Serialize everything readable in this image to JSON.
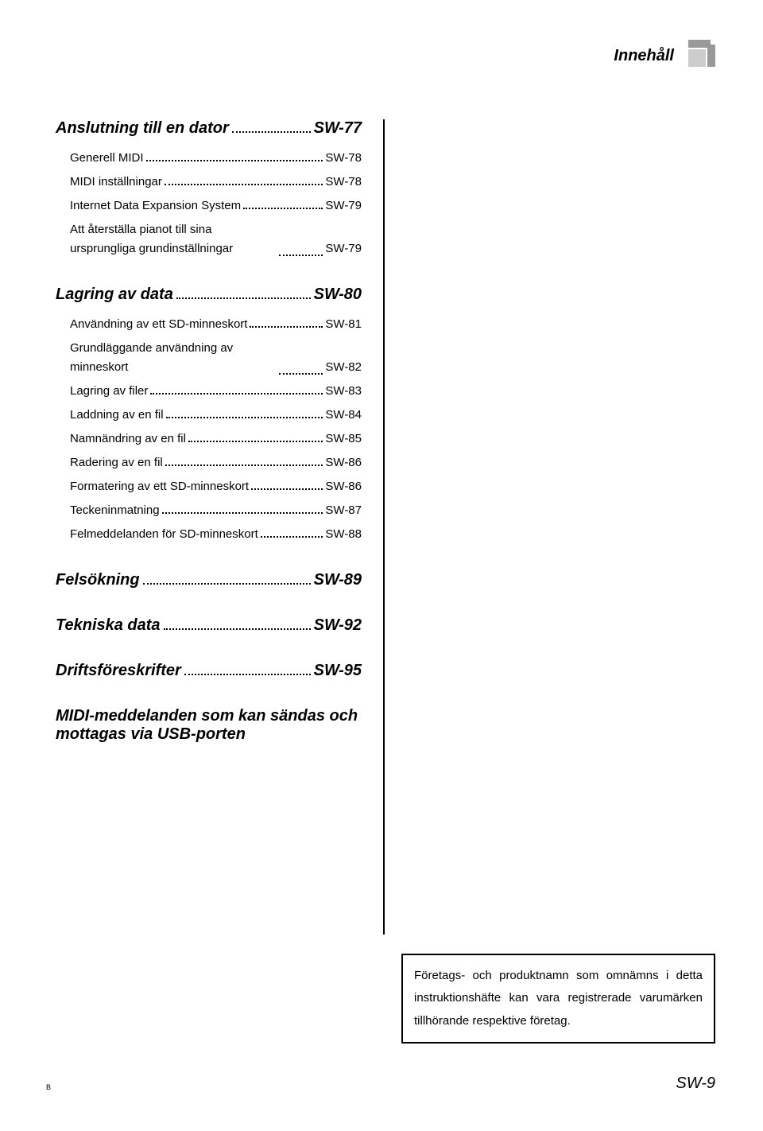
{
  "header": {
    "title": "Innehåll"
  },
  "sections": [
    {
      "heading": {
        "label": "Anslutning till en dator",
        "page": "SW-77"
      },
      "items": [
        {
          "label": "Generell MIDI",
          "page": "SW-78"
        },
        {
          "label": "MIDI inställningar",
          "page": "SW-78"
        },
        {
          "label": "Internet Data Expansion System",
          "page": "SW-79"
        },
        {
          "label": "Att återställa pianot till sina ursprungliga grundinställningar",
          "page": "SW-79",
          "wrap": true
        }
      ]
    },
    {
      "heading": {
        "label": "Lagring av data",
        "page": "SW-80"
      },
      "items": [
        {
          "label": "Användning av ett SD-minneskort",
          "page": "SW-81"
        },
        {
          "label": "Grundläggande användning av minneskort",
          "page": "SW-82",
          "wrap": true
        },
        {
          "label": "Lagring av filer",
          "page": "SW-83"
        },
        {
          "label": "Laddning av en fil",
          "page": "SW-84"
        },
        {
          "label": "Namnändring av en fil",
          "page": "SW-85"
        },
        {
          "label": "Radering av en fil",
          "page": "SW-86"
        },
        {
          "label": "Formatering av ett SD-minneskort",
          "page": "SW-86"
        },
        {
          "label": "Teckeninmatning",
          "page": "SW-87"
        },
        {
          "label": "Felmeddelanden för SD-minneskort",
          "page": "SW-88"
        }
      ]
    },
    {
      "heading": {
        "label": "Felsökning",
        "page": "SW-89"
      },
      "items": []
    },
    {
      "heading": {
        "label": "Tekniska data",
        "page": "SW-92"
      },
      "items": []
    },
    {
      "heading": {
        "label": "Driftsföreskrifter",
        "page": "SW-95"
      },
      "items": []
    },
    {
      "heading": {
        "label": "MIDI-meddelanden som kan sändas och mottagas via USB-porten",
        "page": "",
        "nopage": true
      },
      "items": []
    }
  ],
  "note": "Företags- och produktnamn som omnämns i detta instruktionshäfte kan vara registrerade varumärken tillhörande respektive företag.",
  "footer": {
    "left": "B",
    "right": "SW-9"
  },
  "colors": {
    "text": "#000000",
    "bg": "#ffffff",
    "deco1": "#999999",
    "deco2": "#cccccc"
  }
}
